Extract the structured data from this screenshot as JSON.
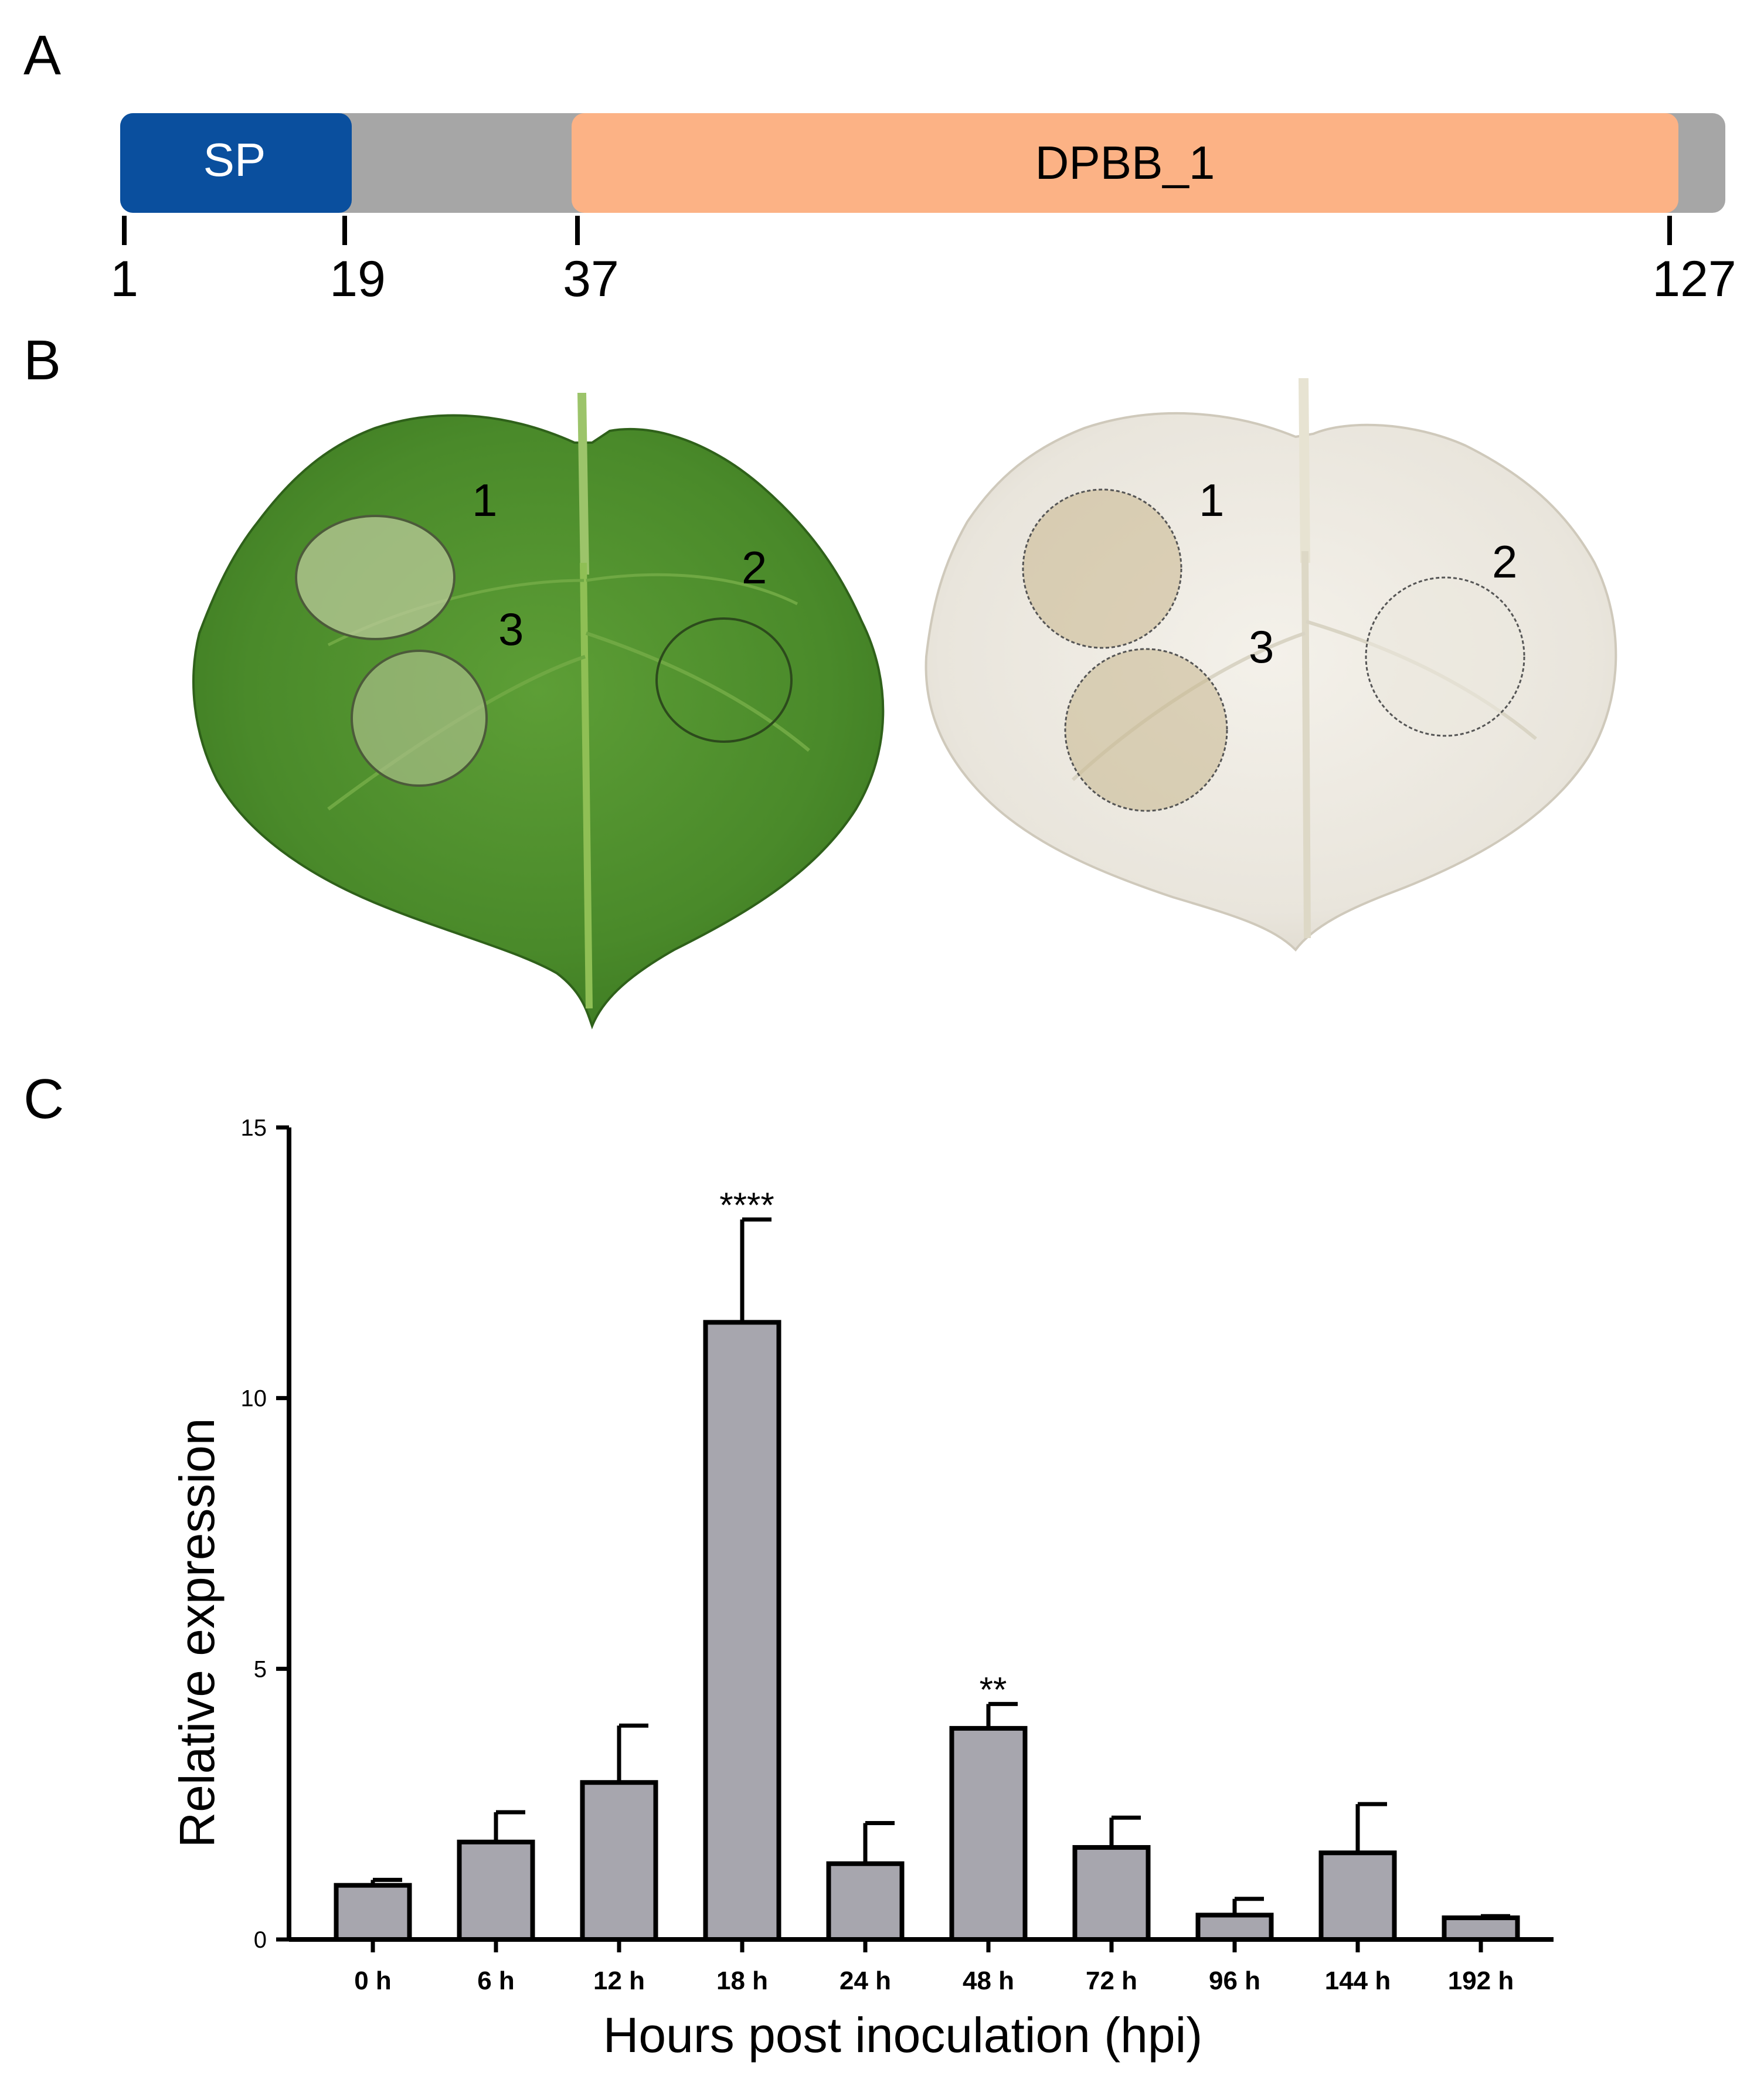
{
  "panels": {
    "a": {
      "letter": "A",
      "domains": [
        {
          "label": "SP",
          "start": 1,
          "end": 19,
          "color": "#0a4f9e",
          "text_color": "#ffffff"
        },
        {
          "label": "DPBB_1",
          "start": 37,
          "end": 127,
          "color": "#fcb285",
          "text_color": "#000000"
        }
      ],
      "backbone_color": "#a6a6a6",
      "ticks": [
        "1",
        "19",
        "37",
        "127"
      ]
    },
    "b": {
      "letter": "B",
      "left_leaf_labels": [
        "1",
        "2",
        "3"
      ],
      "right_leaf_labels": [
        "1",
        "2",
        "3"
      ],
      "leaf_colors": {
        "green": "#4f8f2e",
        "bleached": "#ece8df"
      }
    },
    "c": {
      "letter": "C"
    }
  },
  "chart_data": {
    "type": "bar",
    "categories": [
      "0 h",
      "6 h",
      "12 h",
      "18 h",
      "24 h",
      "48 h",
      "72 h",
      "96 h",
      "144 h",
      "192 h"
    ],
    "values": [
      1.0,
      1.8,
      2.9,
      11.4,
      1.4,
      3.9,
      1.7,
      0.45,
      1.6,
      0.4
    ],
    "errors": [
      0.1,
      0.55,
      1.05,
      1.9,
      0.75,
      0.45,
      0.55,
      0.3,
      0.9,
      0.03
    ],
    "significance": [
      "",
      "",
      "",
      "****",
      "",
      "**",
      "",
      "",
      "",
      ""
    ],
    "xlabel": "Hours post inoculation (hpi)",
    "ylabel": "Relative expression",
    "ylim": [
      0,
      15
    ],
    "yticks": [
      "0",
      "5",
      "10",
      "15"
    ],
    "bar_color": "#a7a6ae",
    "grid": false
  }
}
